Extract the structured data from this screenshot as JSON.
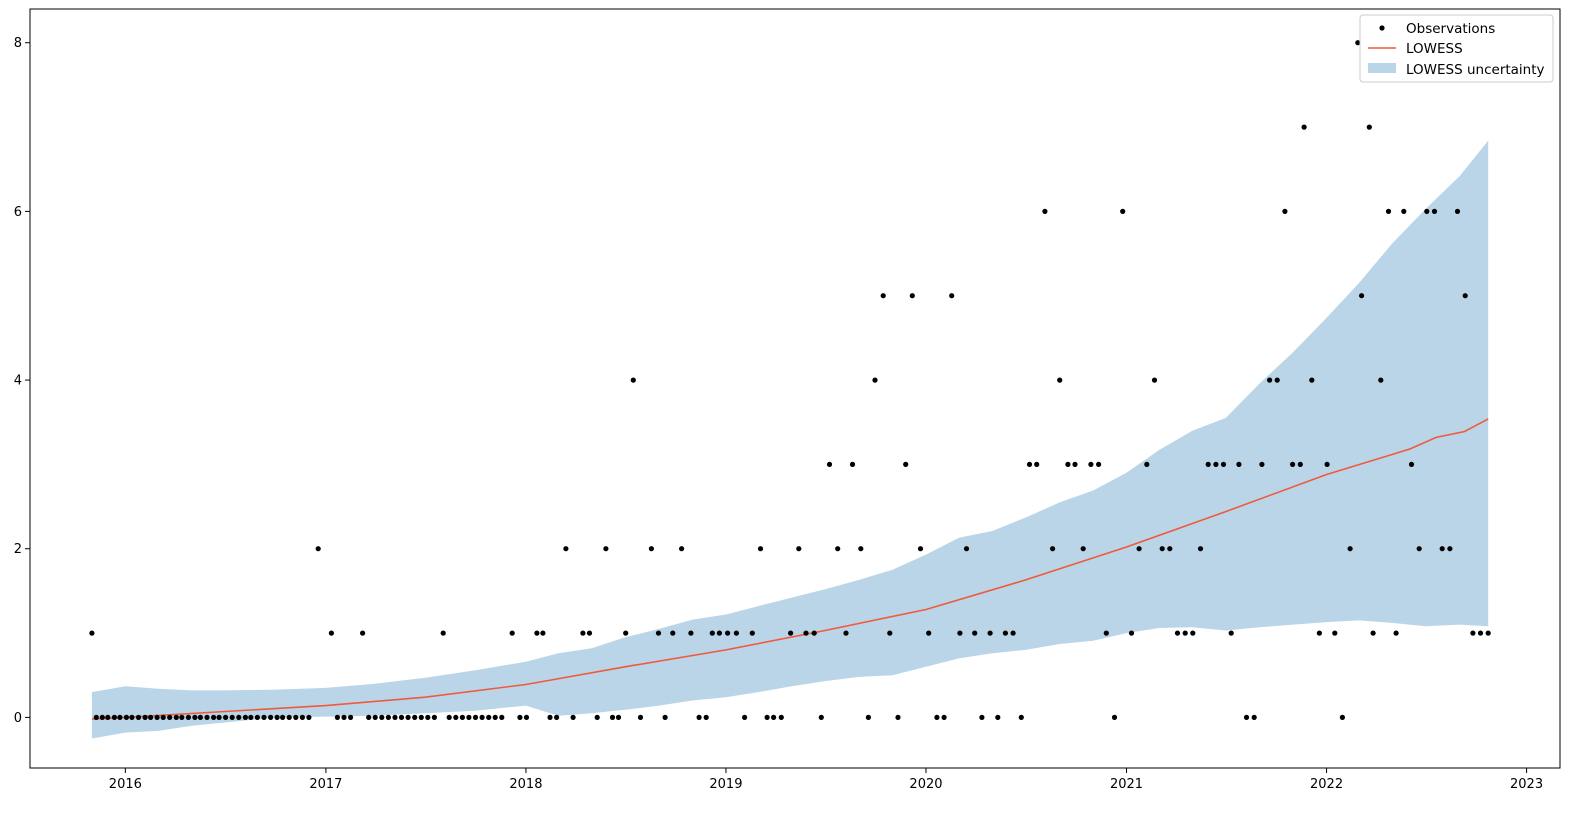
{
  "chart_data": {
    "type": "scatter",
    "title": "",
    "xlabel": "",
    "ylabel": "",
    "x_ticks": [
      "2016",
      "2017",
      "2018",
      "2019",
      "2020",
      "2021",
      "2022",
      "2023"
    ],
    "y_ticks": [
      "0",
      "2",
      "4",
      "6",
      "8"
    ],
    "xlim": [
      "2015-07-11",
      "2023-03-03"
    ],
    "ylim": [
      -0.6,
      8.4
    ],
    "legend": {
      "placement": "top-right",
      "items": [
        "Observations",
        "LOWESS",
        "LOWESS uncertainty"
      ]
    },
    "colors": {
      "observations": "#000000",
      "lowess": "#f05a3c",
      "uncertainty": "#bad5e8"
    },
    "series": [
      {
        "name": "Observations",
        "kind": "points",
        "points": [
          [
            "2015-11-01",
            1
          ],
          [
            "2015-11-09",
            0
          ],
          [
            "2015-11-20",
            0
          ],
          [
            "2015-11-30",
            0
          ],
          [
            "2015-12-12",
            0
          ],
          [
            "2015-12-22",
            0
          ],
          [
            "2016-01-03",
            0
          ],
          [
            "2016-01-13",
            0
          ],
          [
            "2016-01-25",
            0
          ],
          [
            "2016-02-06",
            0
          ],
          [
            "2016-02-16",
            0
          ],
          [
            "2016-02-28",
            0
          ],
          [
            "2016-03-10",
            0
          ],
          [
            "2016-03-22",
            0
          ],
          [
            "2016-04-03",
            0
          ],
          [
            "2016-04-13",
            0
          ],
          [
            "2016-04-25",
            0
          ],
          [
            "2016-05-07",
            0
          ],
          [
            "2016-05-17",
            0
          ],
          [
            "2016-05-29",
            0
          ],
          [
            "2016-06-10",
            0
          ],
          [
            "2016-06-20",
            0
          ],
          [
            "2016-07-02",
            0
          ],
          [
            "2016-07-14",
            0
          ],
          [
            "2016-07-26",
            0
          ],
          [
            "2016-08-07",
            0
          ],
          [
            "2016-08-17",
            0
          ],
          [
            "2016-08-29",
            0
          ],
          [
            "2016-09-10",
            0
          ],
          [
            "2016-09-22",
            0
          ],
          [
            "2016-10-04",
            0
          ],
          [
            "2016-10-14",
            0
          ],
          [
            "2016-10-26",
            0
          ],
          [
            "2016-11-07",
            0
          ],
          [
            "2016-11-19",
            0
          ],
          [
            "2016-12-01",
            0
          ],
          [
            "2016-12-18",
            2
          ],
          [
            "2017-01-11",
            1
          ],
          [
            "2017-01-22",
            0
          ],
          [
            "2017-02-03",
            0
          ],
          [
            "2017-02-15",
            0
          ],
          [
            "2017-03-09",
            1
          ],
          [
            "2017-03-20",
            0
          ],
          [
            "2017-04-01",
            0
          ],
          [
            "2017-04-13",
            0
          ],
          [
            "2017-04-25",
            0
          ],
          [
            "2017-05-07",
            0
          ],
          [
            "2017-05-19",
            0
          ],
          [
            "2017-05-31",
            0
          ],
          [
            "2017-06-12",
            0
          ],
          [
            "2017-06-24",
            0
          ],
          [
            "2017-07-06",
            0
          ],
          [
            "2017-07-18",
            0
          ],
          [
            "2017-08-03",
            1
          ],
          [
            "2017-08-14",
            0
          ],
          [
            "2017-08-26",
            0
          ],
          [
            "2017-09-07",
            0
          ],
          [
            "2017-09-19",
            0
          ],
          [
            "2017-10-01",
            0
          ],
          [
            "2017-10-13",
            0
          ],
          [
            "2017-10-25",
            0
          ],
          [
            "2017-11-06",
            0
          ],
          [
            "2017-11-18",
            0
          ],
          [
            "2017-12-07",
            1
          ],
          [
            "2017-12-21",
            0
          ],
          [
            "2018-01-02",
            0
          ],
          [
            "2018-01-21",
            1
          ],
          [
            "2018-02-01",
            1
          ],
          [
            "2018-02-14",
            0
          ],
          [
            "2018-02-26",
            0
          ],
          [
            "2018-03-15",
            2
          ],
          [
            "2018-03-28",
            0
          ],
          [
            "2018-04-15",
            1
          ],
          [
            "2018-04-27",
            1
          ],
          [
            "2018-05-11",
            0
          ],
          [
            "2018-05-27",
            2
          ],
          [
            "2018-06-08",
            0
          ],
          [
            "2018-06-19",
            0
          ],
          [
            "2018-07-02",
            1
          ],
          [
            "2018-07-16",
            4
          ],
          [
            "2018-07-29",
            0
          ],
          [
            "2018-08-18",
            2
          ],
          [
            "2018-08-31",
            1
          ],
          [
            "2018-09-12",
            0
          ],
          [
            "2018-09-26",
            1
          ],
          [
            "2018-10-12",
            2
          ],
          [
            "2018-10-29",
            1
          ],
          [
            "2018-11-13",
            0
          ],
          [
            "2018-11-26",
            0
          ],
          [
            "2018-12-07",
            1
          ],
          [
            "2018-12-20",
            1
          ],
          [
            "2019-01-04",
            1
          ],
          [
            "2019-01-20",
            1
          ],
          [
            "2019-02-04",
            0
          ],
          [
            "2019-02-18",
            1
          ],
          [
            "2019-03-05",
            2
          ],
          [
            "2019-03-17",
            0
          ],
          [
            "2019-03-29",
            0
          ],
          [
            "2019-04-12",
            0
          ],
          [
            "2019-04-29",
            1
          ],
          [
            "2019-05-14",
            2
          ],
          [
            "2019-05-27",
            1
          ],
          [
            "2019-06-11",
            1
          ],
          [
            "2019-06-24",
            0
          ],
          [
            "2019-07-09",
            3
          ],
          [
            "2019-07-24",
            2
          ],
          [
            "2019-08-08",
            1
          ],
          [
            "2019-08-20",
            3
          ],
          [
            "2019-09-04",
            2
          ],
          [
            "2019-09-18",
            0
          ],
          [
            "2019-09-30",
            4
          ],
          [
            "2019-10-15",
            5
          ],
          [
            "2019-10-27",
            1
          ],
          [
            "2019-11-11",
            0
          ],
          [
            "2019-11-25",
            3
          ],
          [
            "2019-12-07",
            5
          ],
          [
            "2019-12-22",
            2
          ],
          [
            "2020-01-06",
            1
          ],
          [
            "2020-01-21",
            0
          ],
          [
            "2020-02-03",
            0
          ],
          [
            "2020-02-17",
            5
          ],
          [
            "2020-03-03",
            1
          ],
          [
            "2020-03-15",
            2
          ],
          [
            "2020-03-30",
            1
          ],
          [
            "2020-04-12",
            0
          ],
          [
            "2020-04-27",
            1
          ],
          [
            "2020-05-11",
            0
          ],
          [
            "2020-05-25",
            1
          ],
          [
            "2020-06-08",
            1
          ],
          [
            "2020-06-23",
            0
          ],
          [
            "2020-07-08",
            3
          ],
          [
            "2020-07-21",
            3
          ],
          [
            "2020-08-05",
            6
          ],
          [
            "2020-08-19",
            2
          ],
          [
            "2020-09-01",
            4
          ],
          [
            "2020-09-16",
            3
          ],
          [
            "2020-09-29",
            3
          ],
          [
            "2020-10-14",
            2
          ],
          [
            "2020-10-28",
            3
          ],
          [
            "2020-11-11",
            3
          ],
          [
            "2020-11-25",
            1
          ],
          [
            "2020-12-10",
            0
          ],
          [
            "2020-12-25",
            6
          ],
          [
            "2021-01-10",
            1
          ],
          [
            "2021-01-24",
            2
          ],
          [
            "2021-02-07",
            3
          ],
          [
            "2021-02-21",
            4
          ],
          [
            "2021-03-07",
            2
          ],
          [
            "2021-03-21",
            2
          ],
          [
            "2021-04-04",
            1
          ],
          [
            "2021-04-18",
            1
          ],
          [
            "2021-05-02",
            1
          ],
          [
            "2021-05-16",
            2
          ],
          [
            "2021-05-30",
            3
          ],
          [
            "2021-06-13",
            3
          ],
          [
            "2021-06-27",
            3
          ],
          [
            "2021-07-11",
            1
          ],
          [
            "2021-07-25",
            3
          ],
          [
            "2021-08-08",
            0
          ],
          [
            "2021-08-22",
            0
          ],
          [
            "2021-09-05",
            3
          ],
          [
            "2021-09-19",
            4
          ],
          [
            "2021-10-03",
            4
          ],
          [
            "2021-10-17",
            6
          ],
          [
            "2021-10-31",
            3
          ],
          [
            "2021-11-14",
            3
          ],
          [
            "2021-11-21",
            7
          ],
          [
            "2021-12-05",
            4
          ],
          [
            "2021-12-19",
            1
          ],
          [
            "2022-01-02",
            3
          ],
          [
            "2022-01-16",
            1
          ],
          [
            "2022-01-30",
            0
          ],
          [
            "2022-02-13",
            2
          ],
          [
            "2022-02-27",
            8
          ],
          [
            "2022-03-06",
            5
          ],
          [
            "2022-03-20",
            7
          ],
          [
            "2022-03-27",
            1
          ],
          [
            "2022-04-10",
            4
          ],
          [
            "2022-04-24",
            6
          ],
          [
            "2022-05-08",
            1
          ],
          [
            "2022-05-22",
            6
          ],
          [
            "2022-06-05",
            3
          ],
          [
            "2022-06-19",
            2
          ],
          [
            "2022-07-03",
            6
          ],
          [
            "2022-07-17",
            6
          ],
          [
            "2022-07-31",
            2
          ],
          [
            "2022-08-14",
            2
          ],
          [
            "2022-08-28",
            6
          ],
          [
            "2022-09-11",
            5
          ],
          [
            "2022-09-25",
            1
          ],
          [
            "2022-10-09",
            1
          ],
          [
            "2022-10-23",
            1
          ]
        ]
      },
      {
        "name": "LOWESS",
        "kind": "line",
        "points": [
          [
            "2015-11-01",
            -0.02
          ],
          [
            "2016-01-01",
            0.0
          ],
          [
            "2016-07-01",
            0.07
          ],
          [
            "2017-01-01",
            0.14
          ],
          [
            "2017-07-01",
            0.24
          ],
          [
            "2018-01-01",
            0.39
          ],
          [
            "2018-07-01",
            0.6
          ],
          [
            "2019-01-01",
            0.8
          ],
          [
            "2019-07-01",
            1.03
          ],
          [
            "2020-01-01",
            1.28
          ],
          [
            "2020-07-01",
            1.63
          ],
          [
            "2021-01-01",
            2.02
          ],
          [
            "2021-07-01",
            2.44
          ],
          [
            "2022-01-01",
            2.88
          ],
          [
            "2022-06-01",
            3.18
          ],
          [
            "2022-07-20",
            3.32
          ],
          [
            "2022-09-10",
            3.39
          ],
          [
            "2022-10-23",
            3.54
          ]
        ]
      },
      {
        "name": "LOWESS uncertainty",
        "kind": "band",
        "points": [
          [
            "2015-11-01",
            -0.25,
            0.3
          ],
          [
            "2016-01-01",
            -0.18,
            0.37
          ],
          [
            "2016-03-01",
            -0.16,
            0.34
          ],
          [
            "2016-05-01",
            -0.1,
            0.32
          ],
          [
            "2016-07-01",
            -0.06,
            0.32
          ],
          [
            "2016-10-01",
            0.0,
            0.33
          ],
          [
            "2017-01-01",
            0.01,
            0.35
          ],
          [
            "2017-04-01",
            0.02,
            0.4
          ],
          [
            "2017-07-01",
            0.05,
            0.47
          ],
          [
            "2017-10-01",
            0.08,
            0.56
          ],
          [
            "2018-01-01",
            0.14,
            0.66
          ],
          [
            "2018-03-01",
            0.02,
            0.76
          ],
          [
            "2018-05-01",
            0.05,
            0.82
          ],
          [
            "2018-07-01",
            0.09,
            0.95
          ],
          [
            "2018-09-01",
            0.14,
            1.05
          ],
          [
            "2018-11-01",
            0.2,
            1.16
          ],
          [
            "2019-01-01",
            0.24,
            1.22
          ],
          [
            "2019-03-01",
            0.3,
            1.32
          ],
          [
            "2019-05-01",
            0.37,
            1.42
          ],
          [
            "2019-07-01",
            0.43,
            1.52
          ],
          [
            "2019-09-01",
            0.48,
            1.63
          ],
          [
            "2019-11-01",
            0.5,
            1.75
          ],
          [
            "2020-01-01",
            0.6,
            1.93
          ],
          [
            "2020-03-01",
            0.7,
            2.13
          ],
          [
            "2020-05-01",
            0.76,
            2.21
          ],
          [
            "2020-07-01",
            0.8,
            2.37
          ],
          [
            "2020-09-01",
            0.87,
            2.55
          ],
          [
            "2020-11-01",
            0.91,
            2.69
          ],
          [
            "2021-01-01",
            1.0,
            2.9
          ],
          [
            "2021-03-01",
            1.06,
            3.17
          ],
          [
            "2021-05-01",
            1.07,
            3.4
          ],
          [
            "2021-07-01",
            1.03,
            3.55
          ],
          [
            "2021-09-01",
            1.07,
            3.96
          ],
          [
            "2021-11-01",
            1.1,
            4.33
          ],
          [
            "2022-01-01",
            1.13,
            4.74
          ],
          [
            "2022-03-01",
            1.15,
            5.15
          ],
          [
            "2022-05-01",
            1.12,
            5.62
          ],
          [
            "2022-07-01",
            1.08,
            6.03
          ],
          [
            "2022-09-01",
            1.1,
            6.42
          ],
          [
            "2022-10-23",
            1.08,
            6.84
          ]
        ]
      }
    ]
  }
}
